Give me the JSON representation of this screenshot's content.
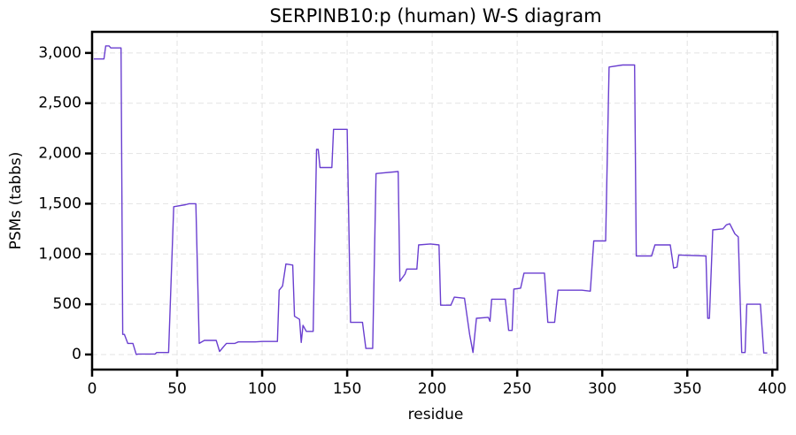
{
  "chart_data": {
    "type": "line",
    "title": "SERPINB10:p (human) W-S diagram",
    "x_label": "residue",
    "y_label": "PSMs (tabbs)",
    "color": "#6a3fd0",
    "grid": true,
    "xlim": [
      0,
      403
    ],
    "ylim": [
      -150,
      3210
    ],
    "xticks": [
      0,
      50,
      100,
      150,
      200,
      250,
      300,
      350,
      400
    ],
    "yticks": [
      0,
      500,
      {
        "value": 1000,
        "label": "1,000"
      },
      {
        "value": 1500,
        "label": "1,500"
      },
      {
        "value": 2000,
        "label": "2,000"
      },
      {
        "value": 2500,
        "label": "2,500"
      },
      {
        "value": 3000,
        "label": "3,000"
      }
    ],
    "x": [
      1,
      7,
      8,
      10,
      11,
      17,
      18,
      19,
      21,
      24,
      26,
      27,
      37,
      38,
      45,
      48,
      55,
      57,
      61,
      63,
      66,
      73,
      75,
      79,
      84,
      86,
      96,
      100,
      109,
      110,
      112,
      114,
      118,
      119,
      122,
      123,
      124,
      126,
      130,
      132,
      133,
      134,
      141,
      142,
      150,
      152,
      159,
      161,
      165,
      167,
      180,
      181,
      184,
      185,
      191,
      192,
      199,
      204,
      205,
      211,
      213,
      219,
      222,
      224,
      226,
      233,
      234,
      235,
      243,
      245,
      247,
      248,
      252,
      254,
      266,
      268,
      272,
      274,
      288,
      293,
      295,
      302,
      304,
      312,
      319,
      320,
      329,
      331,
      340,
      342,
      344,
      345,
      361,
      362,
      363,
      365,
      371,
      373,
      375,
      378,
      380,
      382,
      384,
      385,
      393,
      395,
      397
    ],
    "values": [
      2940,
      2940,
      3070,
      3070,
      3050,
      3050,
      200,
      200,
      110,
      110,
      0,
      5,
      5,
      20,
      20,
      1470,
      1490,
      1500,
      1500,
      110,
      140,
      140,
      30,
      110,
      110,
      125,
      125,
      130,
      130,
      640,
      680,
      900,
      890,
      380,
      350,
      120,
      290,
      230,
      230,
      2040,
      2040,
      1860,
      1860,
      2240,
      2240,
      320,
      320,
      60,
      60,
      1800,
      1820,
      730,
      800,
      850,
      850,
      1090,
      1100,
      1090,
      490,
      490,
      570,
      560,
      200,
      20,
      360,
      370,
      330,
      550,
      550,
      240,
      240,
      650,
      660,
      810,
      810,
      320,
      320,
      640,
      640,
      630,
      1130,
      1130,
      2860,
      2880,
      2880,
      980,
      980,
      1090,
      1090,
      860,
      870,
      990,
      980,
      360,
      360,
      1240,
      1250,
      1290,
      1300,
      1200,
      1170,
      20,
      20,
      500,
      500,
      15,
      15
    ]
  }
}
